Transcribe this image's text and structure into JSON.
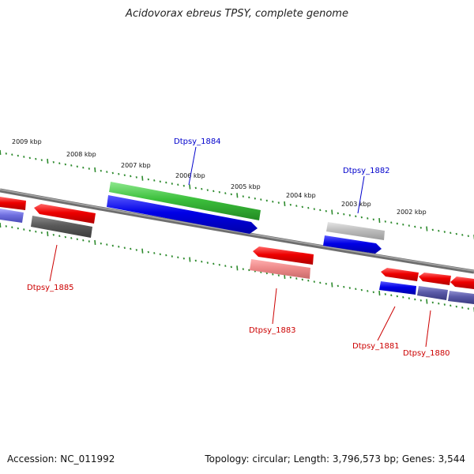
{
  "title": "Acidovorax ebreus TPSY, complete genome",
  "footer": {
    "accession": "Accession: NC_011992",
    "summary": "Topology: circular; Length: 3,796,573 bp; Genes: 3,544"
  },
  "colors": {
    "backbone": "#7a7a7a",
    "tick": "#2e8b2e",
    "label_forward": "#0000cc",
    "label_reverse": "#cc0000"
  },
  "kbp_labels": [
    "2009 kbp",
    "2008 kbp",
    "2007 kbp",
    "2006 kbp",
    "2005 kbp",
    "2004 kbp",
    "2003 kbp",
    "2002 kbp"
  ],
  "genes": [
    {
      "name": "Dtpsy_1884",
      "strand": "forward",
      "color": "#0000cc"
    },
    {
      "name": "Dtpsy_1882",
      "strand": "forward",
      "color": "#0000cc"
    },
    {
      "name": "Dtpsy_1885",
      "strand": "reverse",
      "color": "#cc0000"
    },
    {
      "name": "Dtpsy_1883",
      "strand": "reverse",
      "color": "#cc0000"
    },
    {
      "name": "Dtpsy_1881",
      "strand": "reverse",
      "color": "#cc0000"
    },
    {
      "name": "Dtpsy_1880",
      "strand": "reverse",
      "color": "#cc0000"
    }
  ]
}
